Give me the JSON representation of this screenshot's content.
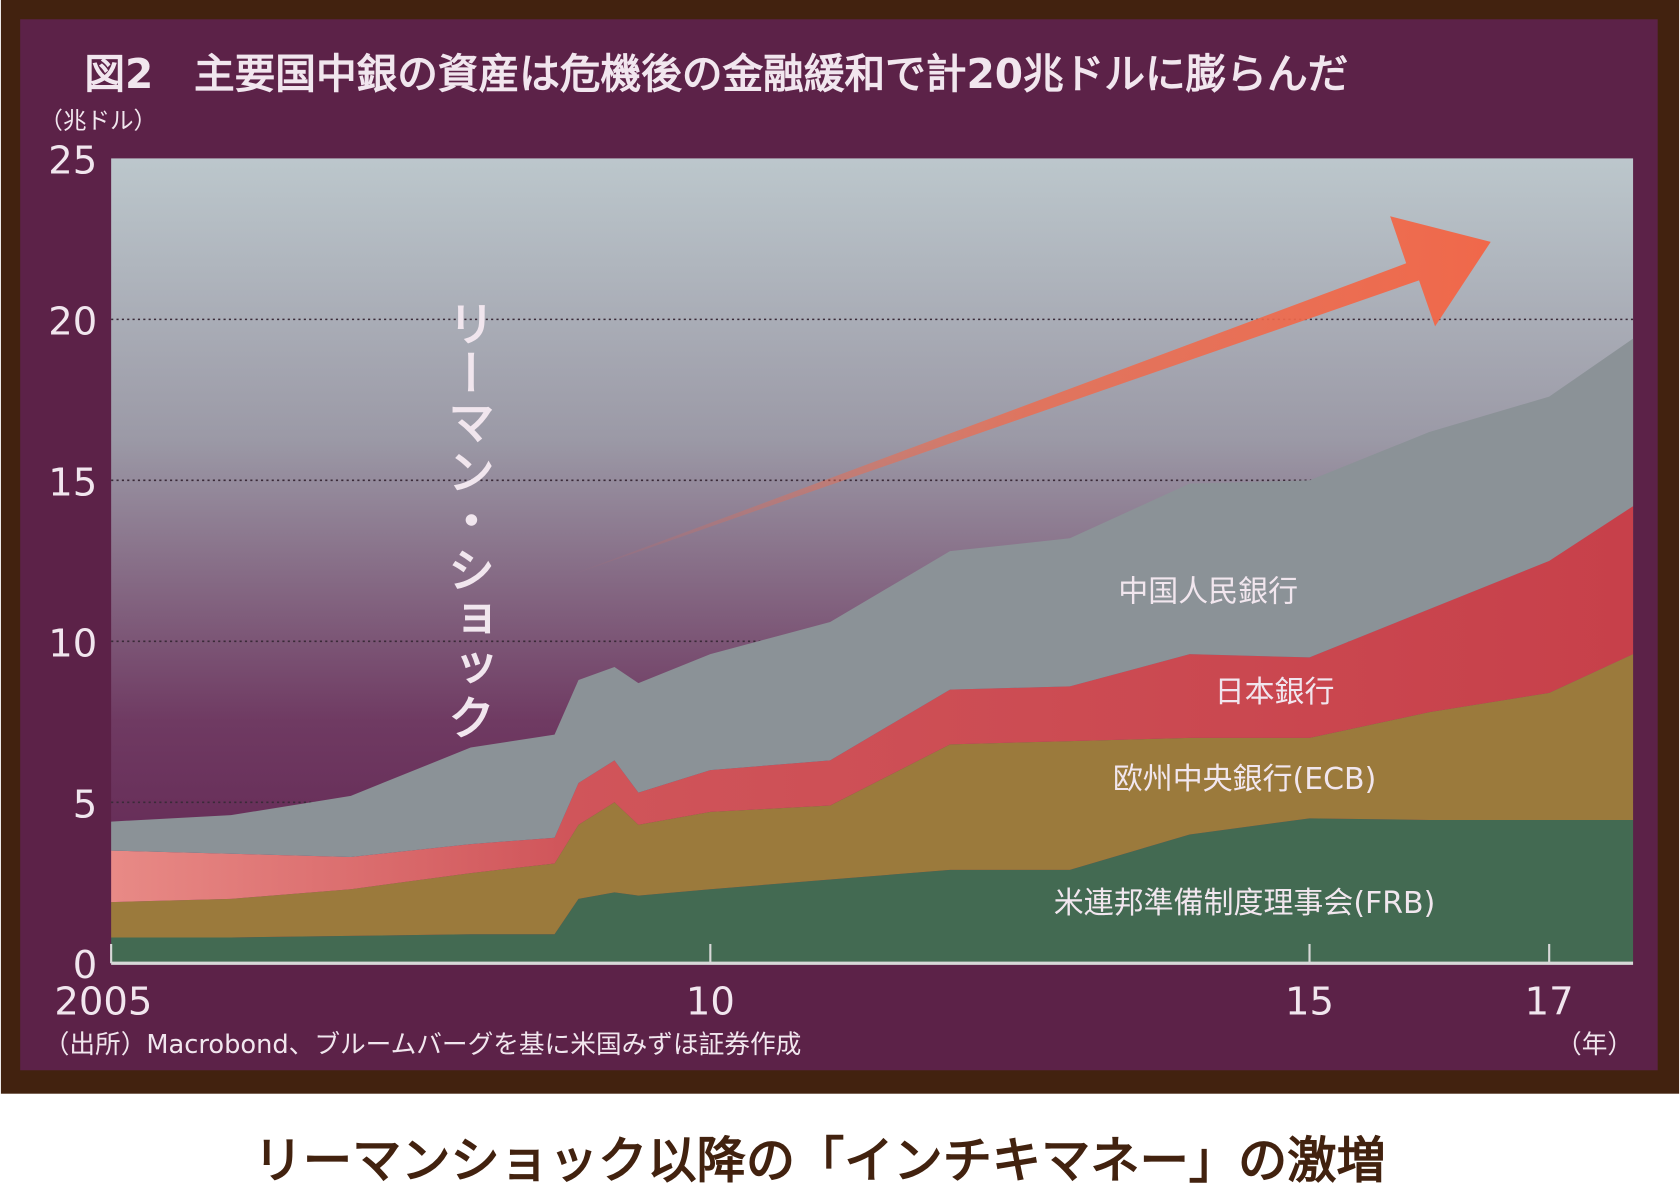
{
  "title": "図2　主要国中銀の資産は危機後の金融緩和で計20兆ドルに膨らんだ",
  "caption": "リーマンショック以降の「インチキマネー」の激増",
  "source": "（出所）Macrobond、ブルームバーグを基に米国みずほ証券作成",
  "annotation": "リーマン・ショック",
  "colors": {
    "frame": "#42220f",
    "panel": "#5c2248",
    "FRB": "#436a52",
    "ECB": "#9b7a3c",
    "BOJ": "#c9464f",
    "PBOC": "#8b9297",
    "arrow": "#ef6a4c"
  },
  "chart_data": {
    "type": "area",
    "stacked": true,
    "ylabel": "（兆ドル）",
    "xlabel": "（年）",
    "ylim": [
      0,
      25
    ],
    "xlim": [
      2005,
      2017.7
    ],
    "yticks": [
      "0",
      "5",
      "10",
      "15",
      "20",
      "25"
    ],
    "xticks": [
      {
        "value": 2005,
        "label": "2005"
      },
      {
        "value": 2010,
        "label": "10"
      },
      {
        "value": 2015,
        "label": "15"
      },
      {
        "value": 2017,
        "label": "17"
      }
    ],
    "grid": true,
    "x": [
      2005,
      2006,
      2007,
      2008,
      2008.7,
      2008.9,
      2009.2,
      2009.4,
      2010,
      2011,
      2012,
      2013,
      2014,
      2015,
      2016,
      2017,
      2017.7
    ],
    "series": [
      {
        "name": "米連邦準備制度理事会(FRB)",
        "key": "FRB",
        "values": [
          0.8,
          0.8,
          0.85,
          0.9,
          0.9,
          2.0,
          2.2,
          2.1,
          2.3,
          2.6,
          2.9,
          2.9,
          4.0,
          4.5,
          4.45,
          4.45,
          4.45
        ]
      },
      {
        "name": "欧州中央銀行(ECB)",
        "key": "ECB",
        "values": [
          1.1,
          1.2,
          1.45,
          1.9,
          2.2,
          2.3,
          2.8,
          2.2,
          2.4,
          2.3,
          3.9,
          4.0,
          3.0,
          2.5,
          3.35,
          3.95,
          5.15
        ]
      },
      {
        "name": "日本銀行",
        "key": "BOJ",
        "values": [
          1.6,
          1.4,
          1.0,
          0.9,
          0.8,
          1.3,
          1.3,
          1.0,
          1.3,
          1.4,
          1.7,
          1.7,
          2.6,
          2.5,
          3.2,
          4.1,
          4.6
        ]
      },
      {
        "name": "中国人民銀行",
        "key": "PBOC",
        "values": [
          0.9,
          1.2,
          1.9,
          3.0,
          3.2,
          3.2,
          2.9,
          3.4,
          3.6,
          4.3,
          4.3,
          4.6,
          5.3,
          5.5,
          5.5,
          5.1,
          5.2
        ]
      }
    ],
    "legend": "inline labels"
  }
}
